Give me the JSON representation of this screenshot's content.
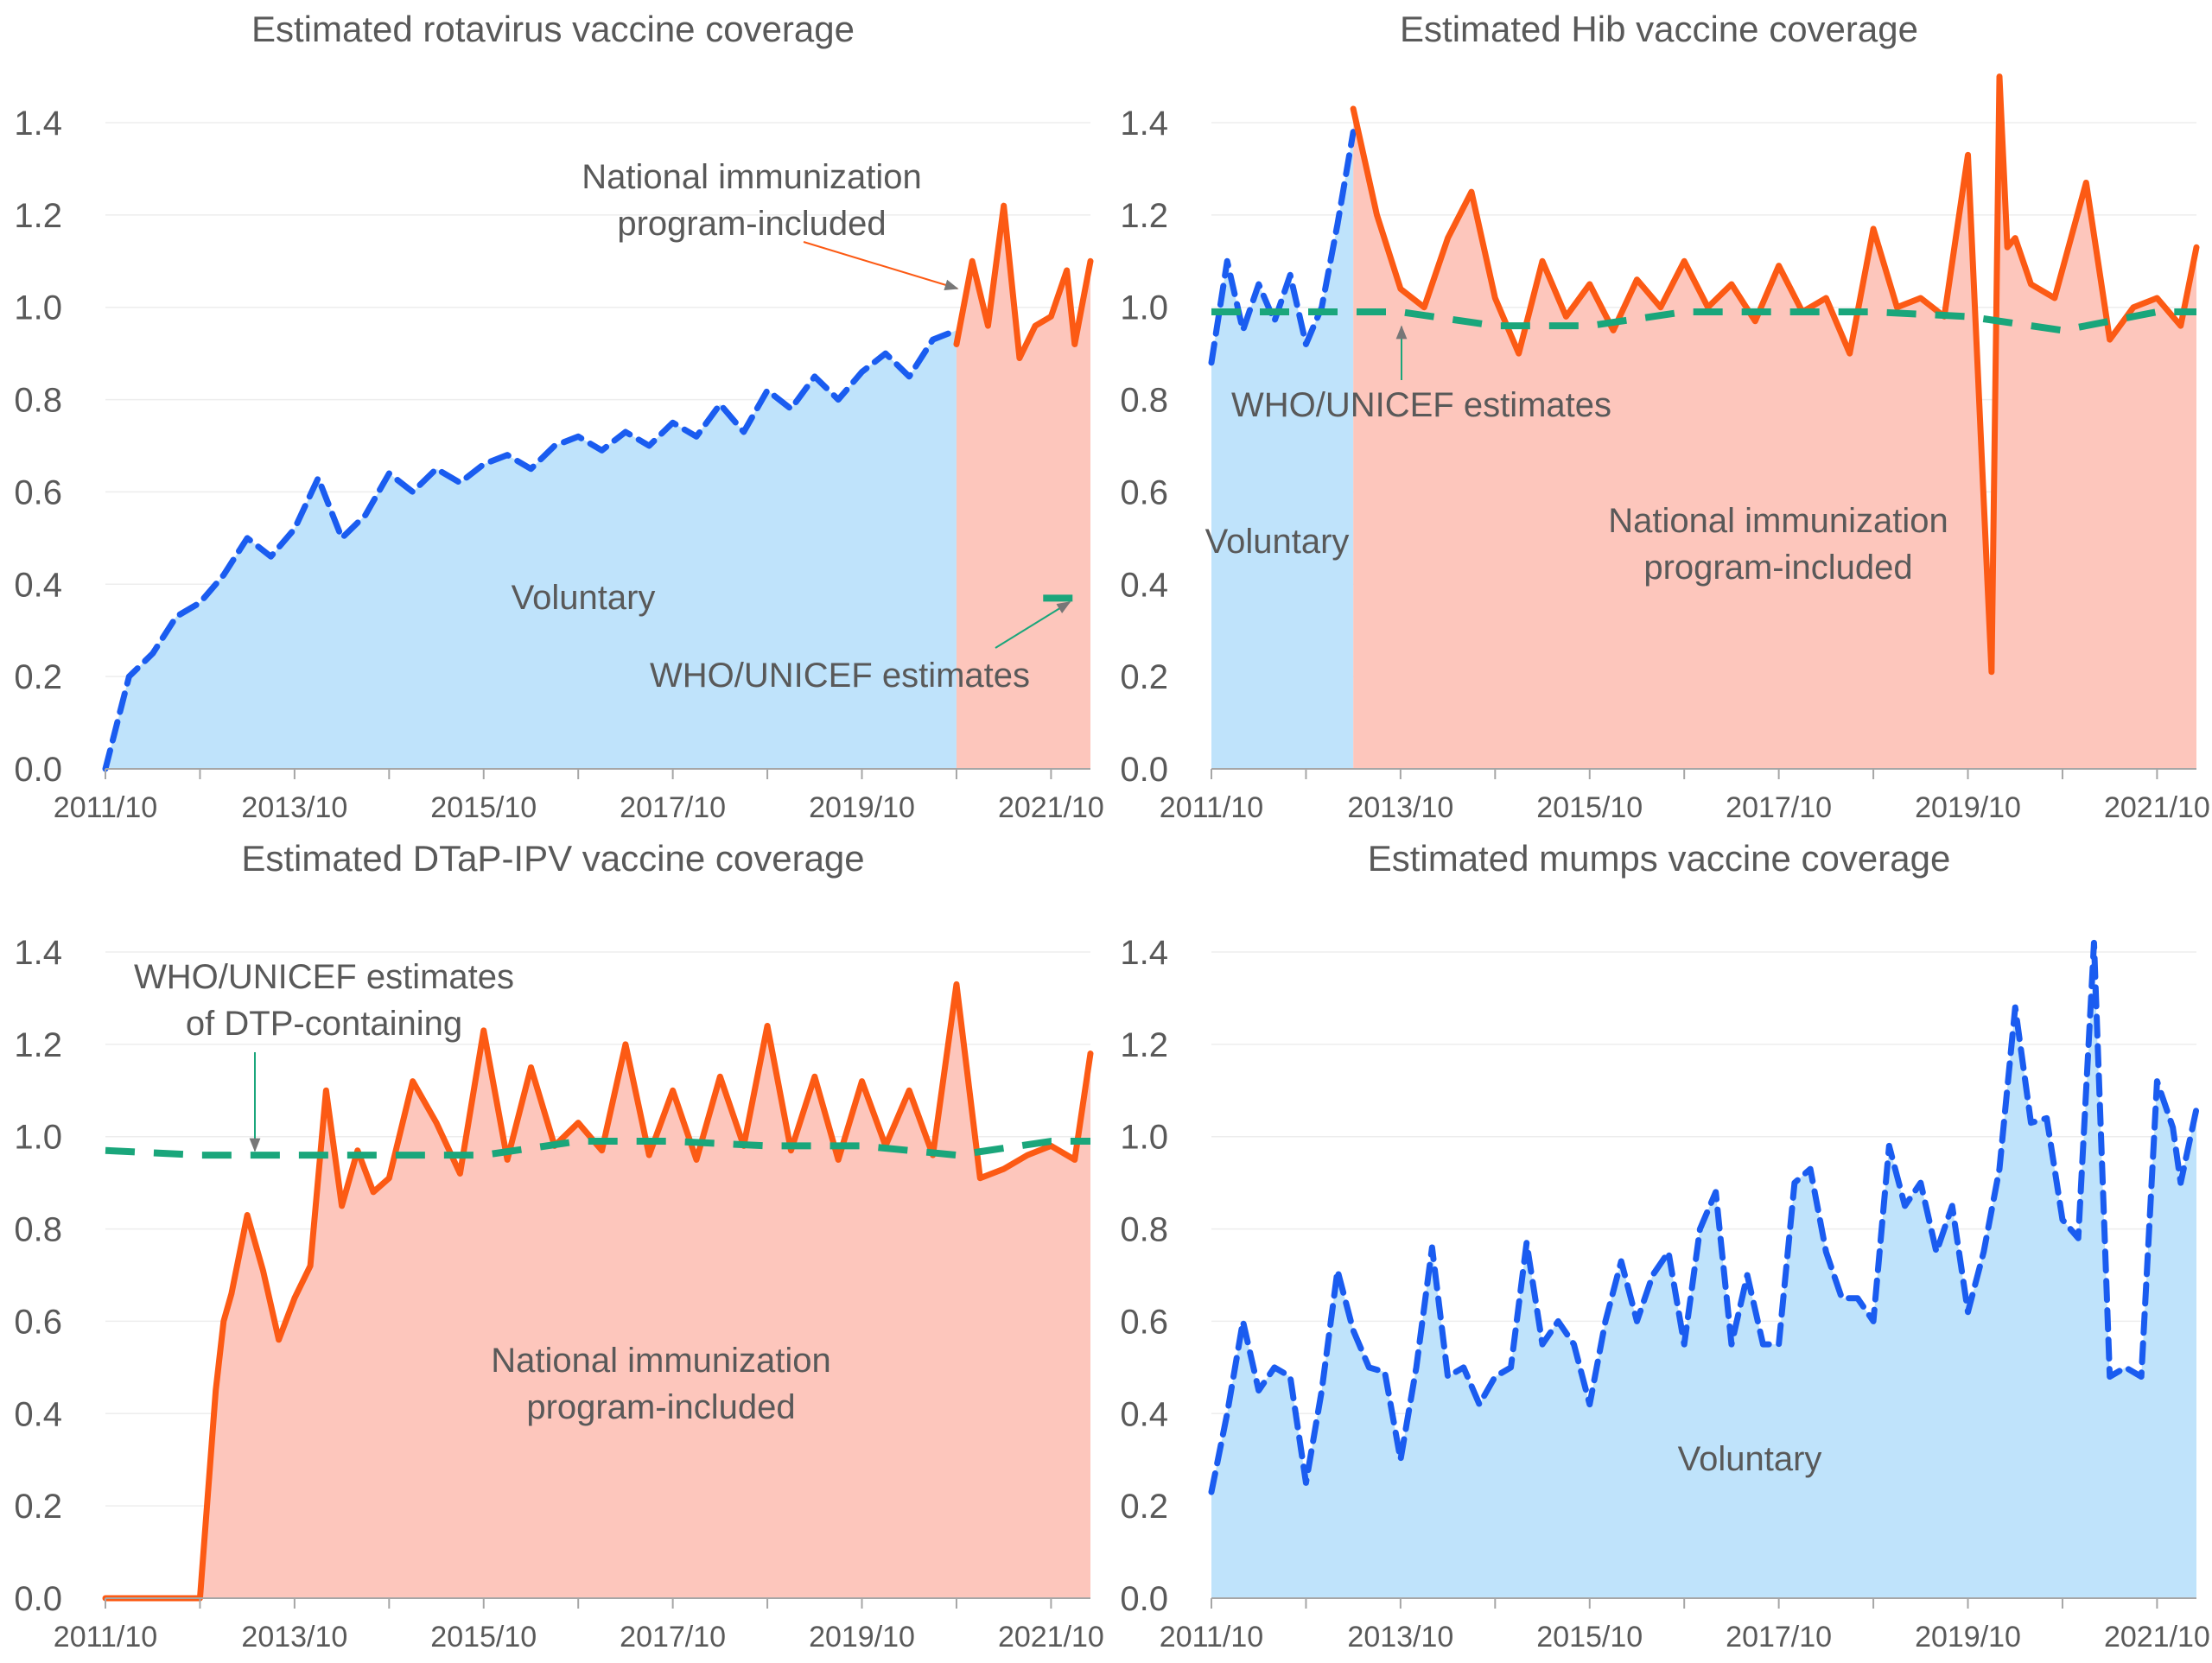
{
  "colors": {
    "voluntary_fill": "#bfe3fb",
    "nip_fill": "#fdc6bc",
    "voluntary_line": "#1a5cf0",
    "nip_line": "#fc5a14",
    "who_line": "#1aa67b",
    "text": "#595959",
    "axis": "#a6a6a6",
    "grid": "#ededed"
  },
  "x_ticks": [
    "2011/10",
    "2013/10",
    "2015/10",
    "2017/10",
    "2019/10",
    "2021/10"
  ],
  "y_ticks": [
    "0.0",
    "0.2",
    "0.4",
    "0.6",
    "0.8",
    "1.0",
    "1.2",
    "1.4"
  ],
  "chart_data": [
    {
      "type": "line",
      "title": "Estimated rotavirus vaccine coverage",
      "xlabel": "",
      "ylabel": "",
      "x_range": [
        "2011/10",
        "2022/03"
      ],
      "ylim": [
        0,
        1.4
      ],
      "grid": true,
      "shading": [
        {
          "label": "Voluntary",
          "from": "2011/10",
          "to": "2020/10"
        },
        {
          "label": "National immunization program-included",
          "from": "2020/10",
          "to": "2022/03"
        }
      ],
      "annotations": [
        {
          "text": [
            "National immunization",
            "program-included"
          ]
        },
        {
          "text": [
            "Voluntary"
          ]
        },
        {
          "text": [
            "WHO/UNICEF estimates"
          ]
        }
      ],
      "series": [
        {
          "style": "voluntary",
          "x": [
            "2011/10",
            "2012/01",
            "2012/04",
            "2012/07",
            "2012/10",
            "2013/01",
            "2013/04",
            "2013/07",
            "2013/10",
            "2014/01",
            "2014/04",
            "2014/07",
            "2014/10",
            "2015/01",
            "2015/04",
            "2015/07",
            "2015/10",
            "2016/01",
            "2016/04",
            "2016/07",
            "2016/10",
            "2017/01",
            "2017/04",
            "2017/07",
            "2017/10",
            "2018/01",
            "2018/04",
            "2018/07",
            "2018/10",
            "2019/01",
            "2019/04",
            "2019/07",
            "2019/10",
            "2020/01",
            "2020/04",
            "2020/07",
            "2020/10"
          ],
          "y": [
            0.0,
            0.2,
            0.25,
            0.33,
            0.36,
            0.42,
            0.5,
            0.46,
            0.52,
            0.63,
            0.5,
            0.55,
            0.64,
            0.6,
            0.65,
            0.62,
            0.66,
            0.68,
            0.65,
            0.7,
            0.72,
            0.69,
            0.73,
            0.7,
            0.75,
            0.72,
            0.79,
            0.73,
            0.82,
            0.78,
            0.85,
            0.8,
            0.86,
            0.9,
            0.85,
            0.93,
            0.95
          ]
        },
        {
          "style": "nip",
          "x": [
            "2020/10",
            "2020/12",
            "2021/02",
            "2021/04",
            "2021/06",
            "2021/08",
            "2021/10",
            "2021/12",
            "2022/01",
            "2022/03"
          ],
          "y": [
            0.92,
            1.1,
            0.96,
            1.22,
            0.89,
            0.96,
            0.98,
            1.08,
            0.92,
            1.1
          ]
        },
        {
          "style": "who",
          "x": [
            "2021/09",
            "2022/03"
          ],
          "y": [
            0.37,
            0.37
          ]
        }
      ]
    },
    {
      "type": "line",
      "title": "Estimated Hib vaccine coverage",
      "xlabel": "",
      "ylabel": "",
      "x_range": [
        "2011/10",
        "2022/03"
      ],
      "ylim": [
        0,
        1.4
      ],
      "grid": true,
      "shading": [
        {
          "label": "Voluntary",
          "from": "2011/10",
          "to": "2013/04"
        },
        {
          "label": "National immunization program-included",
          "from": "2013/04",
          "to": "2022/03"
        }
      ],
      "annotations": [
        {
          "text": [
            "WHO/UNICEF estimates"
          ]
        },
        {
          "text": [
            "Voluntary"
          ]
        },
        {
          "text": [
            "National immunization",
            "program-included"
          ]
        }
      ],
      "series": [
        {
          "style": "voluntary",
          "x": [
            "2011/10",
            "2011/12",
            "2012/02",
            "2012/04",
            "2012/06",
            "2012/08",
            "2012/10",
            "2012/12",
            "2013/02",
            "2013/04"
          ],
          "y": [
            0.88,
            1.1,
            0.95,
            1.05,
            0.97,
            1.07,
            0.92,
            1.0,
            1.18,
            1.38
          ]
        },
        {
          "style": "nip",
          "x": [
            "2013/04",
            "2013/07",
            "2013/10",
            "2014/01",
            "2014/04",
            "2014/07",
            "2014/10",
            "2015/01",
            "2015/04",
            "2015/07",
            "2015/10",
            "2016/01",
            "2016/04",
            "2016/07",
            "2016/10",
            "2017/01",
            "2017/04",
            "2017/07",
            "2017/10",
            "2018/01",
            "2018/04",
            "2018/07",
            "2018/10",
            "2019/01",
            "2019/04",
            "2019/07",
            "2019/10",
            "2020/01",
            "2020/02",
            "2020/03",
            "2020/04",
            "2020/06",
            "2020/09",
            "2021/01",
            "2021/04",
            "2021/07",
            "2021/10",
            "2022/01",
            "2022/03"
          ],
          "y": [
            1.43,
            1.2,
            1.04,
            1.0,
            1.15,
            1.25,
            1.02,
            0.9,
            1.1,
            0.98,
            1.05,
            0.95,
            1.06,
            1.0,
            1.1,
            1.0,
            1.05,
            0.97,
            1.09,
            0.99,
            1.02,
            0.9,
            1.17,
            1.0,
            1.02,
            0.98,
            1.33,
            0.21,
            1.5,
            1.13,
            1.15,
            1.05,
            1.02,
            1.27,
            0.93,
            1.0,
            1.02,
            0.96,
            1.13
          ]
        },
        {
          "style": "who",
          "x": [
            "2011/10",
            "2012/10",
            "2013/10",
            "2014/10",
            "2015/10",
            "2016/10",
            "2017/10",
            "2018/10",
            "2019/10",
            "2020/10",
            "2021/10",
            "2022/03"
          ],
          "y": [
            0.99,
            0.99,
            0.99,
            0.96,
            0.96,
            0.99,
            0.99,
            0.99,
            0.98,
            0.95,
            0.99,
            0.99
          ]
        }
      ]
    },
    {
      "type": "line",
      "title": "Estimated DTaP-IPV vaccine coverage",
      "xlabel": "",
      "ylabel": "",
      "x_range": [
        "2011/10",
        "2022/03"
      ],
      "ylim": [
        0,
        1.4
      ],
      "grid": true,
      "shading": [
        {
          "label": "National immunization program-included",
          "from": "2012/10",
          "to": "2022/03"
        }
      ],
      "annotations": [
        {
          "text": [
            "WHO/UNICEF estimates",
            "of DTP-containing"
          ]
        },
        {
          "text": [
            "National immunization",
            "program-included"
          ]
        }
      ],
      "series": [
        {
          "style": "nip",
          "x": [
            "2011/10",
            "2012/10",
            "2012/12",
            "2013/01",
            "2013/02",
            "2013/04",
            "2013/06",
            "2013/08",
            "2013/10",
            "2013/12",
            "2014/02",
            "2014/04",
            "2014/06",
            "2014/08",
            "2014/10",
            "2015/01",
            "2015/04",
            "2015/07",
            "2015/10",
            "2016/01",
            "2016/04",
            "2016/07",
            "2016/10",
            "2017/01",
            "2017/04",
            "2017/07",
            "2017/10",
            "2018/01",
            "2018/04",
            "2018/07",
            "2018/10",
            "2019/01",
            "2019/04",
            "2019/07",
            "2019/10",
            "2020/01",
            "2020/04",
            "2020/07",
            "2020/10",
            "2021/01",
            "2021/04",
            "2021/07",
            "2021/10",
            "2022/01",
            "2022/03"
          ],
          "y": [
            0.0,
            0.0,
            0.45,
            0.6,
            0.66,
            0.83,
            0.71,
            0.56,
            0.65,
            0.72,
            1.1,
            0.85,
            0.97,
            0.88,
            0.91,
            1.12,
            1.03,
            0.92,
            1.23,
            0.95,
            1.15,
            0.98,
            1.03,
            0.97,
            1.2,
            0.96,
            1.1,
            0.95,
            1.13,
            0.98,
            1.24,
            0.97,
            1.13,
            0.95,
            1.12,
            0.98,
            1.1,
            0.96,
            1.33,
            0.91,
            0.93,
            0.96,
            0.98,
            0.95,
            1.18
          ]
        },
        {
          "style": "who",
          "x": [
            "2011/10",
            "2012/10",
            "2013/10",
            "2014/10",
            "2015/10",
            "2016/10",
            "2017/10",
            "2018/10",
            "2019/10",
            "2020/10",
            "2021/10",
            "2022/03"
          ],
          "y": [
            0.97,
            0.96,
            0.96,
            0.96,
            0.96,
            0.99,
            0.99,
            0.98,
            0.98,
            0.96,
            0.99,
            0.99
          ]
        }
      ]
    },
    {
      "type": "line",
      "title": "Estimated mumps vaccine coverage",
      "xlabel": "",
      "ylabel": "",
      "x_range": [
        "2011/10",
        "2022/03"
      ],
      "ylim": [
        0,
        1.4
      ],
      "grid": true,
      "shading": [
        {
          "label": "Voluntary",
          "from": "2011/10",
          "to": "2022/03"
        }
      ],
      "annotations": [
        {
          "text": [
            "Voluntary"
          ]
        }
      ],
      "series": [
        {
          "style": "voluntary",
          "x": [
            "2011/10",
            "2011/12",
            "2012/02",
            "2012/04",
            "2012/06",
            "2012/08",
            "2012/10",
            "2012/12",
            "2013/02",
            "2013/04",
            "2013/06",
            "2013/08",
            "2013/10",
            "2013/12",
            "2014/02",
            "2014/04",
            "2014/06",
            "2014/08",
            "2014/10",
            "2014/12",
            "2015/02",
            "2015/04",
            "2015/06",
            "2015/08",
            "2015/10",
            "2015/12",
            "2016/02",
            "2016/04",
            "2016/06",
            "2016/08",
            "2016/10",
            "2016/12",
            "2017/02",
            "2017/04",
            "2017/06",
            "2017/08",
            "2017/10",
            "2017/12",
            "2018/02",
            "2018/04",
            "2018/06",
            "2018/08",
            "2018/10",
            "2018/12",
            "2019/02",
            "2019/04",
            "2019/06",
            "2019/08",
            "2019/10",
            "2019/12",
            "2020/02",
            "2020/04",
            "2020/06",
            "2020/08",
            "2020/10",
            "2020/12",
            "2021/02",
            "2021/04",
            "2021/06",
            "2021/08",
            "2021/10",
            "2021/12",
            "2022/01",
            "2022/03"
          ],
          "y": [
            0.23,
            0.4,
            0.6,
            0.45,
            0.5,
            0.48,
            0.25,
            0.45,
            0.71,
            0.58,
            0.5,
            0.49,
            0.3,
            0.5,
            0.76,
            0.48,
            0.5,
            0.42,
            0.48,
            0.5,
            0.77,
            0.55,
            0.6,
            0.55,
            0.42,
            0.6,
            0.73,
            0.6,
            0.7,
            0.75,
            0.55,
            0.8,
            0.88,
            0.55,
            0.7,
            0.55,
            0.55,
            0.9,
            0.93,
            0.75,
            0.65,
            0.65,
            0.6,
            0.98,
            0.85,
            0.9,
            0.75,
            0.85,
            0.62,
            0.75,
            0.93,
            1.28,
            1.03,
            1.04,
            0.82,
            0.78,
            1.42,
            0.48,
            0.5,
            0.48,
            1.12,
            1.02,
            0.9,
            1.06
          ]
        }
      ]
    }
  ]
}
